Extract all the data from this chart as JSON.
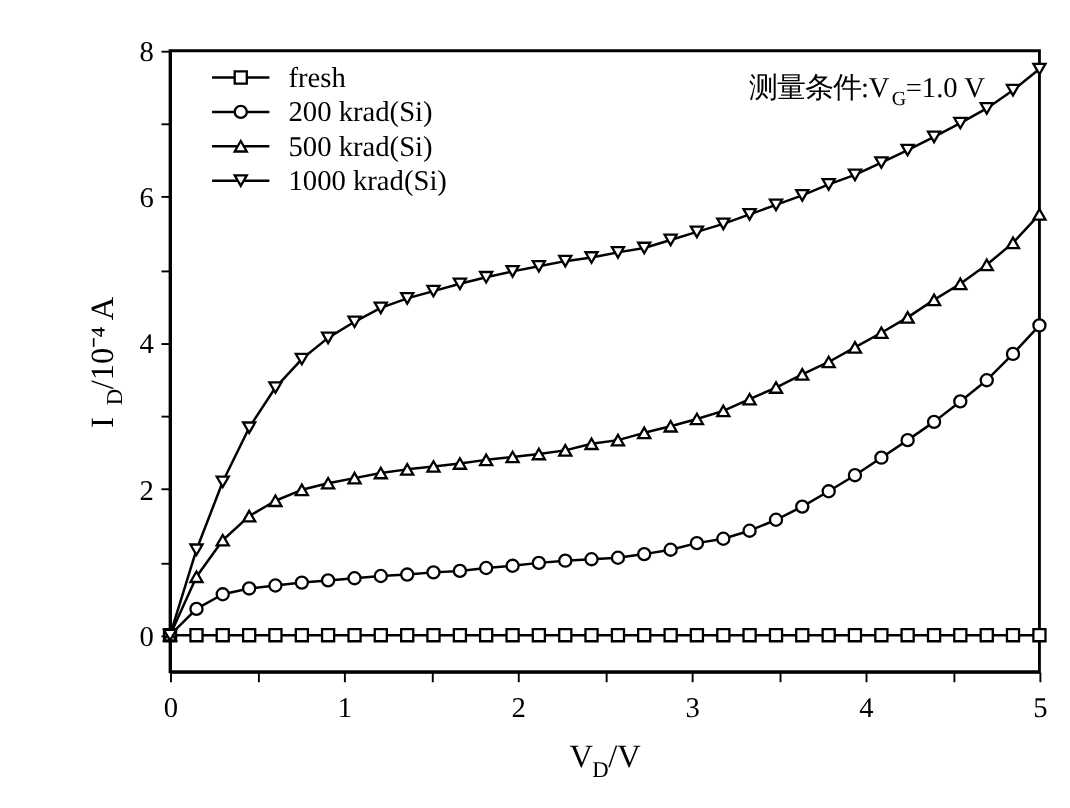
{
  "chart_data": {
    "type": "line",
    "xlabel": "V$_{D}$/V",
    "ylabel": "I$_{D}$/10⁻⁴ A",
    "annotations": [
      "测量条件:V$_{G}$=1.0 V"
    ],
    "x": [
      0,
      0.152,
      0.303,
      0.455,
      0.606,
      0.758,
      0.909,
      1.061,
      1.212,
      1.364,
      1.515,
      1.667,
      1.818,
      1.97,
      2.121,
      2.273,
      2.424,
      2.576,
      2.727,
      2.879,
      3.03,
      3.182,
      3.333,
      3.485,
      3.636,
      3.788,
      3.939,
      4.091,
      4.242,
      4.394,
      4.545,
      4.697,
      4.848,
      5
    ],
    "xlim": [
      0,
      5
    ],
    "xticks": [
      0,
      {
        "value": 0.5,
        "label": null
      },
      1,
      {
        "value": 1.5,
        "label": null
      },
      2,
      {
        "value": 2.5,
        "label": null
      },
      3,
      {
        "value": 3.5,
        "label": null
      },
      4,
      {
        "value": 4.5,
        "label": null
      },
      5
    ],
    "ylim": [
      -0.5,
      8
    ],
    "yticks": [
      0,
      {
        "value": 1,
        "label": null
      },
      2,
      {
        "value": 3,
        "label": null
      },
      4,
      {
        "value": 5,
        "label": null
      },
      6,
      {
        "value": 7,
        "label": null
      },
      8
    ],
    "grid": false,
    "legend": "top left",
    "line_style": "solid",
    "series": [
      {
        "name": "fresh",
        "color": "#000000",
        "marker": "square",
        "values": [
          0,
          0,
          0,
          0,
          0,
          0,
          0,
          0,
          0,
          0,
          0,
          0,
          0,
          0,
          0,
          0,
          0,
          0,
          0,
          0,
          0,
          0,
          0,
          0,
          0,
          0,
          0,
          0,
          0,
          0,
          0,
          0,
          0,
          0
        ]
      },
      {
        "name": "200 krad(Si)",
        "color": "#000000",
        "marker": "circle",
        "values": [
          0,
          0.36,
          0.56,
          0.64,
          0.68,
          0.72,
          0.75,
          0.78,
          0.81,
          0.83,
          0.86,
          0.88,
          0.92,
          0.95,
          0.99,
          1.02,
          1.04,
          1.06,
          1.11,
          1.17,
          1.26,
          1.32,
          1.43,
          1.58,
          1.76,
          1.97,
          2.19,
          2.43,
          2.67,
          2.92,
          3.2,
          3.49,
          3.85,
          4.24
        ]
      },
      {
        "name": "500 krad(Si)",
        "color": "#000000",
        "marker": "triangle",
        "values": [
          0,
          0.8,
          1.3,
          1.63,
          1.84,
          1.99,
          2.08,
          2.15,
          2.22,
          2.27,
          2.31,
          2.35,
          2.4,
          2.44,
          2.48,
          2.53,
          2.62,
          2.67,
          2.77,
          2.86,
          2.96,
          3.07,
          3.23,
          3.39,
          3.57,
          3.74,
          3.94,
          4.14,
          4.35,
          4.59,
          4.81,
          5.07,
          5.37,
          5.76
        ]
      },
      {
        "name": "1000 krad(Si)",
        "color": "#000000",
        "marker": "triangle-down",
        "values": [
          0,
          1.17,
          2.1,
          2.84,
          3.39,
          3.78,
          4.07,
          4.29,
          4.48,
          4.61,
          4.71,
          4.81,
          4.9,
          4.98,
          5.05,
          5.12,
          5.17,
          5.24,
          5.3,
          5.41,
          5.52,
          5.63,
          5.76,
          5.89,
          6.02,
          6.17,
          6.3,
          6.47,
          6.64,
          6.82,
          7.01,
          7.21,
          7.46,
          7.75
        ]
      }
    ]
  }
}
